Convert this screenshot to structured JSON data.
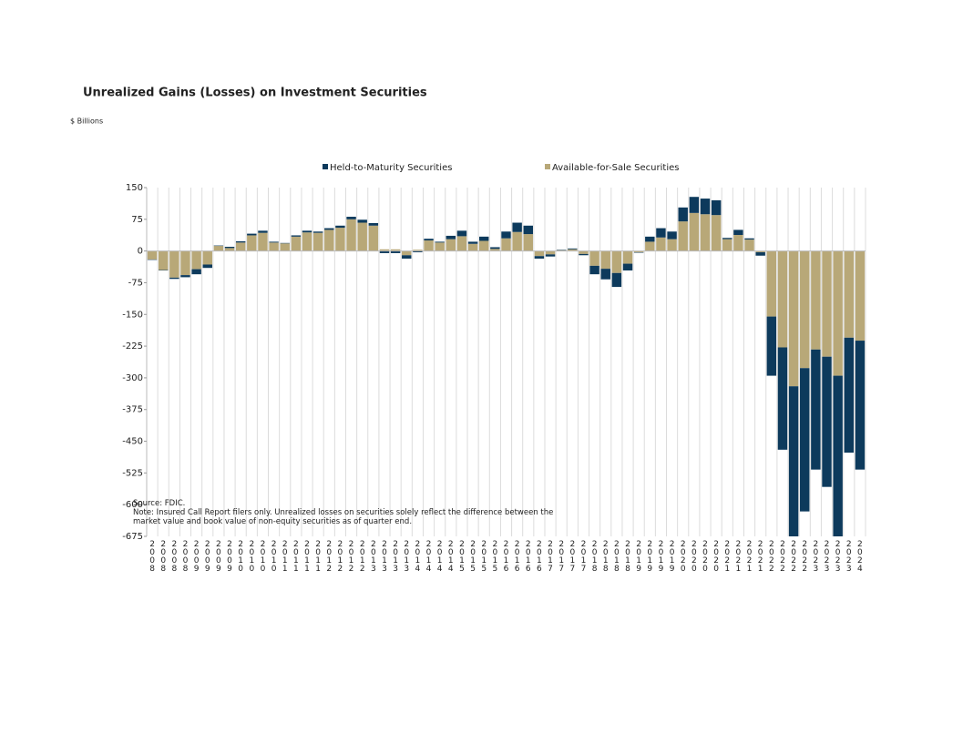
{
  "chart_data": {
    "type": "stacked_bar",
    "title": "Unrealized Gains (Losses) on Investment Securities",
    "subtitle": "$ Billions",
    "source": "Source: FDIC.",
    "note": "Note: Insured Call Report filers only. Unrealized losses on securities solely reflect the difference between the market value and book value of non-equity securities as of quarter end.",
    "categories": [
      "2008",
      "2008",
      "2008",
      "2008",
      "2009",
      "2009",
      "2009",
      "2009",
      "2010",
      "2010",
      "2010",
      "2010",
      "2011",
      "2011",
      "2011",
      "2011",
      "2012",
      "2012",
      "2012",
      "2012",
      "2013",
      "2013",
      "2013",
      "2013",
      "2014",
      "2014",
      "2014",
      "2014",
      "2015",
      "2015",
      "2015",
      "2015",
      "2016",
      "2016",
      "2016",
      "2016",
      "2017",
      "2017",
      "2017",
      "2017",
      "2018",
      "2018",
      "2018",
      "2018",
      "2019",
      "2019",
      "2019",
      "2019",
      "2020",
      "2020",
      "2020",
      "2020",
      "2021",
      "2021",
      "2021",
      "2021",
      "2022",
      "2022",
      "2022",
      "2022",
      "2023",
      "2023",
      "2023",
      "2023",
      "2024"
    ],
    "series": [
      {
        "name": "Held-to-Maturity Securities",
        "color": "#0d3a5c",
        "values": [
          -1,
          -1,
          -3,
          -5,
          -12,
          -8,
          1,
          3,
          3,
          4,
          5,
          2,
          1,
          3,
          4,
          3,
          4,
          5,
          6,
          7,
          6,
          -5,
          -5,
          -8,
          -3,
          4,
          2,
          8,
          13,
          5,
          10,
          4,
          16,
          22,
          20,
          -6,
          -5,
          1,
          2,
          -3,
          -20,
          -25,
          -33,
          -16,
          -1,
          12,
          22,
          18,
          33,
          38,
          37,
          35,
          3,
          12,
          3,
          -8,
          -140,
          -242,
          -355,
          -339,
          -284,
          -308,
          -380,
          -272,
          -305
        ]
      },
      {
        "name": "Available-for-Sale Securities",
        "color": "#b8a878",
        "values": [
          -20,
          -45,
          -63,
          -57,
          -43,
          -32,
          12,
          7,
          20,
          37,
          43,
          20,
          18,
          34,
          44,
          43,
          50,
          55,
          75,
          67,
          60,
          4,
          4,
          -10,
          3,
          25,
          20,
          28,
          35,
          17,
          24,
          5,
          30,
          45,
          40,
          -12,
          -8,
          2,
          4,
          -7,
          -35,
          -42,
          -52,
          -30,
          -3,
          22,
          32,
          28,
          70,
          90,
          87,
          85,
          28,
          38,
          27,
          -3,
          -155,
          -228,
          -320,
          -277,
          -233,
          -250,
          -295,
          -205,
          -212
        ]
      }
    ],
    "ylim": [
      -675,
      150
    ],
    "yticks": [
      150,
      75,
      0,
      -75,
      -150,
      -225,
      -300,
      -375,
      -450,
      -525,
      -600,
      -675
    ],
    "grid": true
  }
}
